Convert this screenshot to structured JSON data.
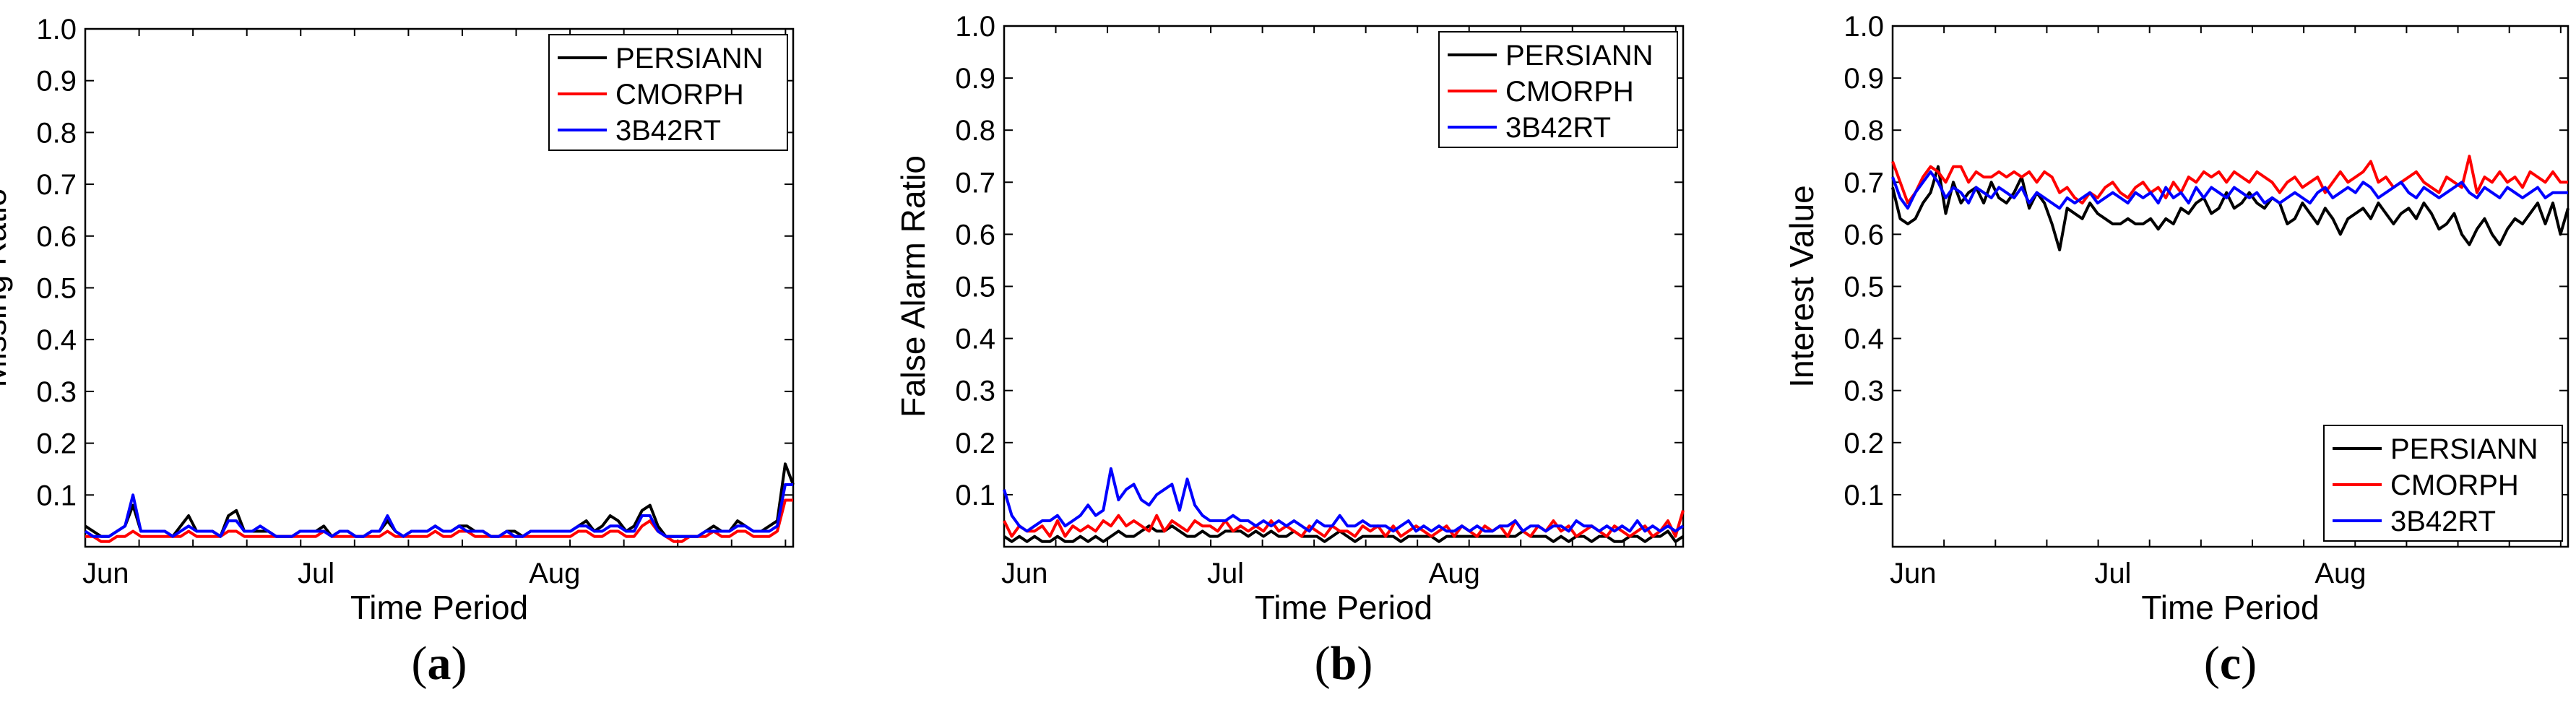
{
  "chart_data": [
    {
      "type": "line",
      "panel": "a",
      "caption_letter": "a",
      "ylabel": "Missing Ratio",
      "xlabel": "Time Period",
      "ylim": [
        0,
        1.0
      ],
      "yticks": [
        "0.1",
        "0.2",
        "0.3",
        "0.4",
        "0.5",
        "0.6",
        "0.7",
        "0.8",
        "0.9",
        "1.0"
      ],
      "ytick_values": [
        0.1,
        0.2,
        0.3,
        0.4,
        0.5,
        0.6,
        0.7,
        0.8,
        0.9,
        1.0
      ],
      "xlim": [
        0,
        92
      ],
      "xticks": [
        "Jun",
        "Jul",
        "Aug"
      ],
      "xtick_values": [
        0,
        30,
        61
      ],
      "legend_position": "top-right",
      "series": [
        {
          "name": "PERSIANN",
          "color": "#000000",
          "values": [
            0.04,
            0.03,
            0.02,
            0.02,
            0.03,
            0.04,
            0.08,
            0.03,
            0.03,
            0.03,
            0.03,
            0.02,
            0.04,
            0.06,
            0.03,
            0.03,
            0.03,
            0.02,
            0.06,
            0.07,
            0.03,
            0.03,
            0.03,
            0.03,
            0.02,
            0.02,
            0.02,
            0.03,
            0.03,
            0.03,
            0.04,
            0.02,
            0.03,
            0.03,
            0.02,
            0.02,
            0.03,
            0.03,
            0.05,
            0.03,
            0.02,
            0.03,
            0.03,
            0.03,
            0.04,
            0.03,
            0.03,
            0.04,
            0.04,
            0.03,
            0.03,
            0.02,
            0.02,
            0.03,
            0.03,
            0.02,
            0.03,
            0.03,
            0.03,
            0.03,
            0.03,
            0.03,
            0.04,
            0.05,
            0.03,
            0.04,
            0.06,
            0.05,
            0.03,
            0.04,
            0.07,
            0.08,
            0.04,
            0.02,
            0.02,
            0.02,
            0.02,
            0.02,
            0.03,
            0.04,
            0.03,
            0.03,
            0.05,
            0.04,
            0.03,
            0.03,
            0.04,
            0.05,
            0.16,
            0.12
          ]
        },
        {
          "name": "CMORPH",
          "color": "#ff0000",
          "values": [
            0.02,
            0.02,
            0.01,
            0.01,
            0.02,
            0.02,
            0.03,
            0.02,
            0.02,
            0.02,
            0.02,
            0.02,
            0.02,
            0.03,
            0.02,
            0.02,
            0.02,
            0.02,
            0.03,
            0.03,
            0.02,
            0.02,
            0.02,
            0.02,
            0.02,
            0.02,
            0.02,
            0.02,
            0.02,
            0.02,
            0.03,
            0.02,
            0.02,
            0.02,
            0.02,
            0.02,
            0.02,
            0.02,
            0.03,
            0.02,
            0.02,
            0.02,
            0.02,
            0.02,
            0.03,
            0.02,
            0.02,
            0.03,
            0.03,
            0.02,
            0.02,
            0.02,
            0.02,
            0.02,
            0.02,
            0.02,
            0.02,
            0.02,
            0.02,
            0.02,
            0.02,
            0.02,
            0.03,
            0.03,
            0.02,
            0.02,
            0.03,
            0.03,
            0.02,
            0.02,
            0.04,
            0.05,
            0.03,
            0.02,
            0.01,
            0.01,
            0.02,
            0.02,
            0.02,
            0.03,
            0.02,
            0.02,
            0.03,
            0.03,
            0.02,
            0.02,
            0.02,
            0.03,
            0.09,
            0.09
          ]
        },
        {
          "name": "3B42RT",
          "color": "#0000ff",
          "values": [
            0.03,
            0.02,
            0.02,
            0.02,
            0.03,
            0.04,
            0.1,
            0.03,
            0.03,
            0.03,
            0.03,
            0.02,
            0.03,
            0.04,
            0.03,
            0.03,
            0.03,
            0.02,
            0.05,
            0.05,
            0.03,
            0.03,
            0.04,
            0.03,
            0.02,
            0.02,
            0.02,
            0.03,
            0.03,
            0.03,
            0.03,
            0.02,
            0.03,
            0.03,
            0.02,
            0.02,
            0.03,
            0.03,
            0.06,
            0.03,
            0.02,
            0.03,
            0.03,
            0.03,
            0.04,
            0.03,
            0.03,
            0.04,
            0.03,
            0.03,
            0.03,
            0.02,
            0.02,
            0.03,
            0.02,
            0.02,
            0.03,
            0.03,
            0.03,
            0.03,
            0.03,
            0.03,
            0.04,
            0.04,
            0.03,
            0.03,
            0.04,
            0.04,
            0.03,
            0.03,
            0.06,
            0.06,
            0.03,
            0.02,
            0.02,
            0.02,
            0.02,
            0.02,
            0.03,
            0.03,
            0.03,
            0.03,
            0.04,
            0.04,
            0.03,
            0.03,
            0.03,
            0.04,
            0.12,
            0.12
          ]
        }
      ]
    },
    {
      "type": "line",
      "panel": "b",
      "caption_letter": "b",
      "ylabel": "False Alarm Ratio",
      "xlabel": "Time Period",
      "ylim": [
        0,
        1.0
      ],
      "yticks": [
        "0.1",
        "0.2",
        "0.3",
        "0.4",
        "0.5",
        "0.6",
        "0.7",
        "0.8",
        "0.9",
        "1.0"
      ],
      "ytick_values": [
        0.1,
        0.2,
        0.3,
        0.4,
        0.5,
        0.6,
        0.7,
        0.8,
        0.9,
        1.0
      ],
      "xlim": [
        0,
        92
      ],
      "xticks": [
        "Jun",
        "Jul",
        "Aug"
      ],
      "xtick_values": [
        0,
        30,
        61
      ],
      "legend_position": "top-right",
      "series": [
        {
          "name": "PERSIANN",
          "color": "#000000",
          "values": [
            0.02,
            0.01,
            0.02,
            0.01,
            0.02,
            0.01,
            0.01,
            0.02,
            0.01,
            0.01,
            0.02,
            0.01,
            0.02,
            0.01,
            0.02,
            0.03,
            0.02,
            0.02,
            0.03,
            0.04,
            0.03,
            0.03,
            0.04,
            0.03,
            0.02,
            0.02,
            0.03,
            0.02,
            0.02,
            0.03,
            0.03,
            0.03,
            0.02,
            0.03,
            0.02,
            0.03,
            0.02,
            0.02,
            0.03,
            0.02,
            0.02,
            0.02,
            0.01,
            0.02,
            0.03,
            0.02,
            0.01,
            0.02,
            0.02,
            0.02,
            0.02,
            0.02,
            0.01,
            0.02,
            0.02,
            0.02,
            0.02,
            0.01,
            0.02,
            0.02,
            0.02,
            0.02,
            0.02,
            0.02,
            0.02,
            0.02,
            0.02,
            0.02,
            0.03,
            0.02,
            0.02,
            0.02,
            0.01,
            0.02,
            0.01,
            0.02,
            0.02,
            0.01,
            0.02,
            0.02,
            0.01,
            0.01,
            0.02,
            0.02,
            0.01,
            0.02,
            0.02,
            0.03,
            0.01,
            0.02
          ]
        },
        {
          "name": "CMORPH",
          "color": "#ff0000",
          "values": [
            0.05,
            0.02,
            0.04,
            0.03,
            0.03,
            0.04,
            0.02,
            0.05,
            0.02,
            0.04,
            0.03,
            0.04,
            0.03,
            0.05,
            0.04,
            0.06,
            0.04,
            0.05,
            0.04,
            0.03,
            0.06,
            0.03,
            0.05,
            0.04,
            0.03,
            0.05,
            0.04,
            0.04,
            0.03,
            0.05,
            0.03,
            0.04,
            0.03,
            0.04,
            0.03,
            0.05,
            0.03,
            0.04,
            0.03,
            0.02,
            0.04,
            0.03,
            0.02,
            0.04,
            0.03,
            0.03,
            0.02,
            0.04,
            0.03,
            0.04,
            0.02,
            0.04,
            0.02,
            0.03,
            0.04,
            0.03,
            0.02,
            0.03,
            0.04,
            0.02,
            0.04,
            0.03,
            0.02,
            0.04,
            0.03,
            0.04,
            0.02,
            0.05,
            0.03,
            0.02,
            0.04,
            0.03,
            0.05,
            0.03,
            0.04,
            0.02,
            0.03,
            0.04,
            0.03,
            0.02,
            0.04,
            0.03,
            0.02,
            0.03,
            0.04,
            0.02,
            0.03,
            0.05,
            0.02,
            0.07
          ]
        },
        {
          "name": "3B42RT",
          "color": "#0000ff",
          "values": [
            0.11,
            0.06,
            0.04,
            0.03,
            0.04,
            0.05,
            0.05,
            0.06,
            0.04,
            0.05,
            0.06,
            0.08,
            0.06,
            0.07,
            0.15,
            0.09,
            0.11,
            0.12,
            0.09,
            0.08,
            0.1,
            0.11,
            0.12,
            0.07,
            0.13,
            0.08,
            0.06,
            0.05,
            0.05,
            0.05,
            0.06,
            0.05,
            0.05,
            0.04,
            0.05,
            0.04,
            0.05,
            0.04,
            0.05,
            0.04,
            0.03,
            0.05,
            0.04,
            0.04,
            0.06,
            0.04,
            0.04,
            0.05,
            0.04,
            0.04,
            0.04,
            0.03,
            0.04,
            0.05,
            0.03,
            0.04,
            0.03,
            0.04,
            0.03,
            0.03,
            0.04,
            0.03,
            0.04,
            0.03,
            0.03,
            0.04,
            0.04,
            0.05,
            0.03,
            0.04,
            0.04,
            0.03,
            0.04,
            0.04,
            0.03,
            0.05,
            0.04,
            0.04,
            0.03,
            0.04,
            0.03,
            0.04,
            0.03,
            0.05,
            0.03,
            0.04,
            0.03,
            0.04,
            0.03,
            0.04
          ]
        }
      ]
    },
    {
      "type": "line",
      "panel": "c",
      "caption_letter": "c",
      "ylabel": "Interest Value",
      "xlabel": "Time Period",
      "ylim": [
        0,
        1.0
      ],
      "yticks": [
        "0.1",
        "0.2",
        "0.3",
        "0.4",
        "0.5",
        "0.6",
        "0.7",
        "0.8",
        "0.9",
        "1.0"
      ],
      "ytick_values": [
        0.1,
        0.2,
        0.3,
        0.4,
        0.5,
        0.6,
        0.7,
        0.8,
        0.9,
        1.0
      ],
      "xlim": [
        0,
        92
      ],
      "xticks": [
        "Jun",
        "Jul",
        "Aug"
      ],
      "xtick_values": [
        0,
        30,
        61
      ],
      "legend_position": "bottom-right",
      "series": [
        {
          "name": "PERSIANN",
          "color": "#000000",
          "values": [
            0.69,
            0.63,
            0.62,
            0.63,
            0.66,
            0.68,
            0.73,
            0.64,
            0.7,
            0.66,
            0.68,
            0.69,
            0.66,
            0.7,
            0.67,
            0.66,
            0.68,
            0.71,
            0.65,
            0.68,
            0.66,
            0.62,
            0.57,
            0.65,
            0.64,
            0.63,
            0.66,
            0.64,
            0.63,
            0.62,
            0.62,
            0.63,
            0.62,
            0.62,
            0.63,
            0.61,
            0.63,
            0.62,
            0.65,
            0.64,
            0.66,
            0.67,
            0.64,
            0.65,
            0.68,
            0.65,
            0.66,
            0.68,
            0.66,
            0.65,
            0.67,
            0.66,
            0.62,
            0.63,
            0.66,
            0.64,
            0.62,
            0.65,
            0.63,
            0.6,
            0.63,
            0.64,
            0.65,
            0.63,
            0.66,
            0.64,
            0.62,
            0.64,
            0.65,
            0.63,
            0.66,
            0.64,
            0.61,
            0.62,
            0.64,
            0.6,
            0.58,
            0.61,
            0.63,
            0.6,
            0.58,
            0.61,
            0.63,
            0.62,
            0.64,
            0.66,
            0.62,
            0.66,
            0.6,
            0.65
          ]
        },
        {
          "name": "CMORPH",
          "color": "#ff0000",
          "values": [
            0.74,
            0.7,
            0.66,
            0.68,
            0.71,
            0.73,
            0.72,
            0.7,
            0.73,
            0.73,
            0.7,
            0.72,
            0.71,
            0.71,
            0.72,
            0.71,
            0.72,
            0.71,
            0.72,
            0.7,
            0.72,
            0.71,
            0.68,
            0.69,
            0.67,
            0.66,
            0.68,
            0.67,
            0.69,
            0.7,
            0.68,
            0.67,
            0.69,
            0.7,
            0.68,
            0.69,
            0.67,
            0.7,
            0.68,
            0.71,
            0.7,
            0.72,
            0.71,
            0.72,
            0.7,
            0.72,
            0.71,
            0.7,
            0.72,
            0.71,
            0.7,
            0.68,
            0.7,
            0.71,
            0.69,
            0.7,
            0.71,
            0.68,
            0.7,
            0.72,
            0.7,
            0.71,
            0.72,
            0.74,
            0.7,
            0.71,
            0.69,
            0.7,
            0.71,
            0.72,
            0.7,
            0.69,
            0.68,
            0.71,
            0.7,
            0.69,
            0.75,
            0.68,
            0.71,
            0.7,
            0.72,
            0.7,
            0.71,
            0.69,
            0.72,
            0.71,
            0.7,
            0.72,
            0.7,
            0.7
          ]
        },
        {
          "name": "3B42RT",
          "color": "#0000ff",
          "values": [
            0.71,
            0.67,
            0.65,
            0.68,
            0.7,
            0.72,
            0.7,
            0.67,
            0.69,
            0.68,
            0.66,
            0.69,
            0.68,
            0.67,
            0.69,
            0.68,
            0.67,
            0.69,
            0.66,
            0.68,
            0.67,
            0.66,
            0.65,
            0.67,
            0.66,
            0.67,
            0.68,
            0.66,
            0.67,
            0.68,
            0.67,
            0.66,
            0.68,
            0.67,
            0.68,
            0.66,
            0.69,
            0.67,
            0.68,
            0.66,
            0.69,
            0.67,
            0.69,
            0.68,
            0.67,
            0.69,
            0.68,
            0.67,
            0.68,
            0.66,
            0.67,
            0.66,
            0.67,
            0.68,
            0.67,
            0.66,
            0.68,
            0.69,
            0.67,
            0.68,
            0.69,
            0.68,
            0.7,
            0.69,
            0.67,
            0.68,
            0.69,
            0.7,
            0.68,
            0.67,
            0.69,
            0.68,
            0.67,
            0.68,
            0.69,
            0.7,
            0.68,
            0.67,
            0.69,
            0.68,
            0.67,
            0.69,
            0.68,
            0.67,
            0.68,
            0.69,
            0.67,
            0.68,
            0.68,
            0.68
          ]
        }
      ]
    }
  ]
}
